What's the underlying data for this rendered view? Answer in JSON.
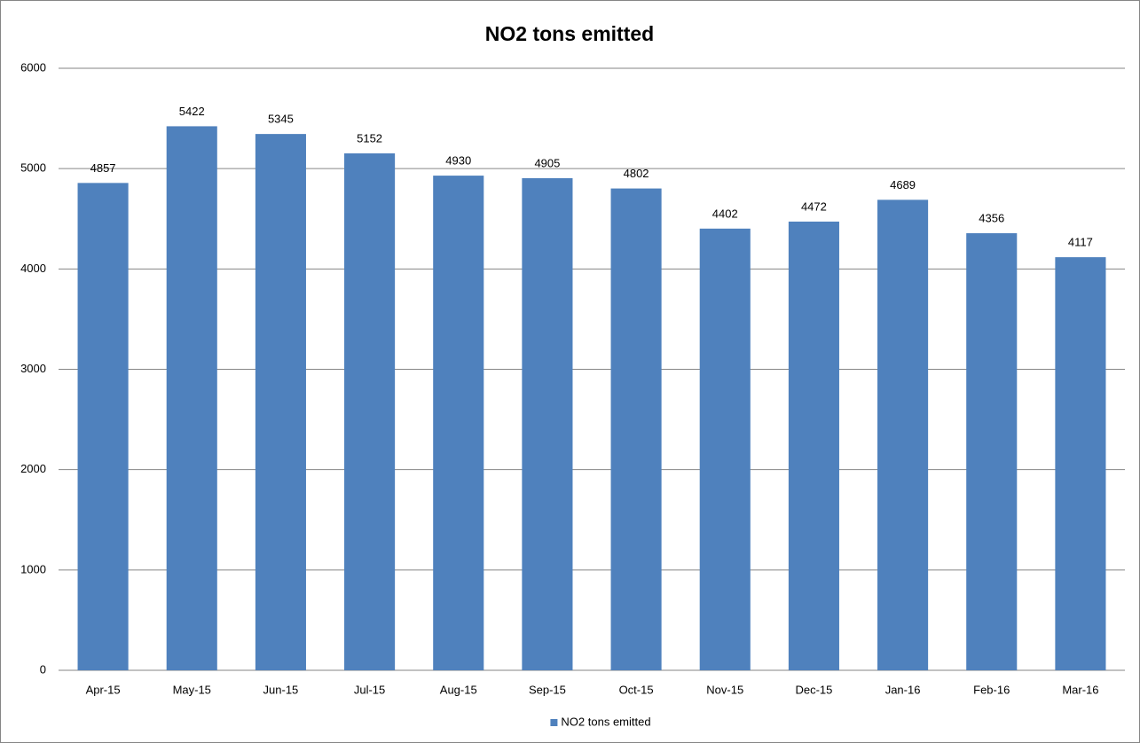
{
  "chart_data": {
    "type": "bar",
    "title": "NO2 tons emitted",
    "categories": [
      "Apr-15",
      "May-15",
      "Jun-15",
      "Jul-15",
      "Aug-15",
      "Sep-15",
      "Oct-15",
      "Nov-15",
      "Dec-15",
      "Jan-16",
      "Feb-16",
      "Mar-16"
    ],
    "series": [
      {
        "name": "NO2 tons emitted",
        "color": "#4f81bd",
        "values": [
          4857,
          5422,
          5345,
          5152,
          4930,
          4905,
          4802,
          4402,
          4472,
          4689,
          4356,
          4117
        ]
      }
    ],
    "ylim": [
      0,
      6000
    ],
    "yticks": [
      0,
      1000,
      2000,
      3000,
      4000,
      5000,
      6000
    ],
    "grid": true,
    "legend": "bottom",
    "data_labels": true
  }
}
